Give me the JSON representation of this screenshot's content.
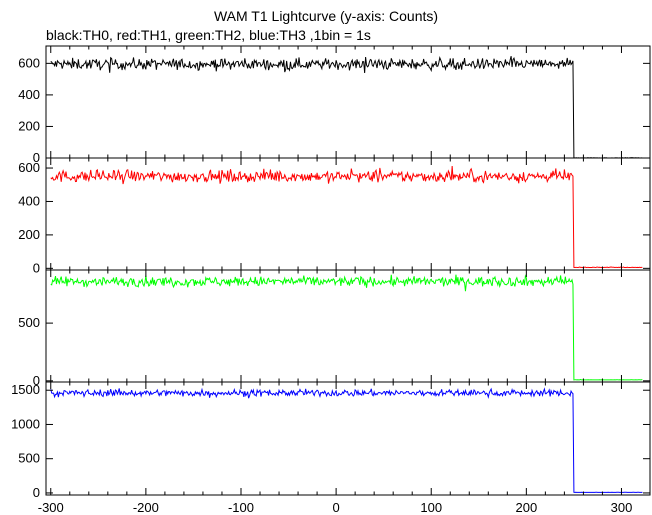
{
  "title": "WAM T1 Lightcurve (y-axis: Counts)",
  "subtitle": "black:TH0, red:TH1, green:TH2, blue:TH3 ,1bin = 1s",
  "chart_data": {
    "type": "line",
    "x_range": [
      -305,
      330
    ],
    "x_ticks": [
      -300,
      -200,
      -100,
      0,
      100,
      200,
      300
    ],
    "cutoff_x": 250,
    "series": [
      {
        "name": "TH0",
        "color": "#000000",
        "level": 595,
        "noise": 25,
        "after": 0,
        "ylim": [
          0,
          710
        ],
        "y_ticks": [
          0,
          200,
          400,
          600
        ]
      },
      {
        "name": "TH1",
        "color": "#ff0000",
        "level": 550,
        "noise": 25,
        "after": 5,
        "ylim": [
          -10,
          660
        ],
        "y_ticks": [
          0,
          200,
          400,
          600
        ]
      },
      {
        "name": "TH2",
        "color": "#00ff00",
        "level": 860,
        "noise": 30,
        "after": 8,
        "ylim": [
          -10,
          960
        ],
        "y_ticks": [
          0,
          500
        ]
      },
      {
        "name": "TH3",
        "color": "#0000ff",
        "level": 1460,
        "noise": 35,
        "after": 8,
        "ylim": [
          -30,
          1620
        ],
        "y_ticks": [
          0,
          500,
          1000,
          1500
        ]
      }
    ]
  }
}
